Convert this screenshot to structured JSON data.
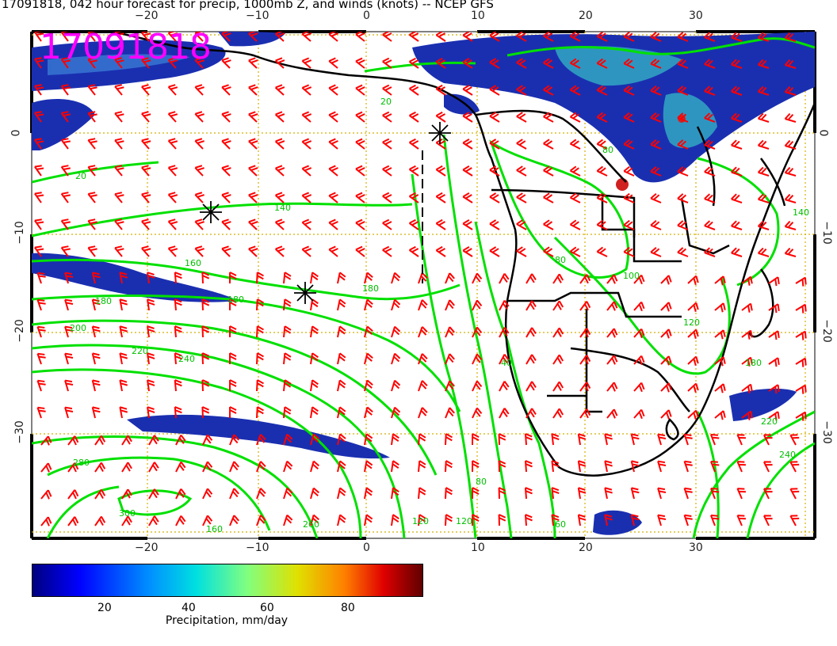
{
  "title": "17091818, 042 hour forecast for precip, 1000mb Z, and winds (knots) -- NCEP GFS",
  "stamp": "17091818",
  "axes": {
    "x_ticks_top": [
      "−20",
      "−10",
      "0",
      "10",
      "20",
      "30"
    ],
    "x_ticks_bottom": [
      "−20",
      "−10",
      "0",
      "10",
      "20",
      "30"
    ],
    "y_ticks_left": [
      "0",
      "−10",
      "−20",
      "−30"
    ],
    "y_ticks_right": [
      "0",
      "−10",
      "−20",
      "−30"
    ]
  },
  "contour_labels": [
    "20",
    "20",
    "140",
    "160",
    "180",
    "180",
    "180",
    "200",
    "220",
    "240",
    "280",
    "300",
    "260",
    "120",
    "80",
    "60",
    "40",
    "120",
    "80",
    "100",
    "80",
    "180",
    "220",
    "240",
    "140",
    "120",
    "160"
  ],
  "colorbar": {
    "title": "Precipitation, mm/day",
    "ticks": [
      "20",
      "40",
      "60",
      "80"
    ]
  },
  "colors": {
    "contours": "#00e000",
    "barbs": "#ff0000",
    "coast": "#000000",
    "stamp": "#ff00ff"
  }
}
